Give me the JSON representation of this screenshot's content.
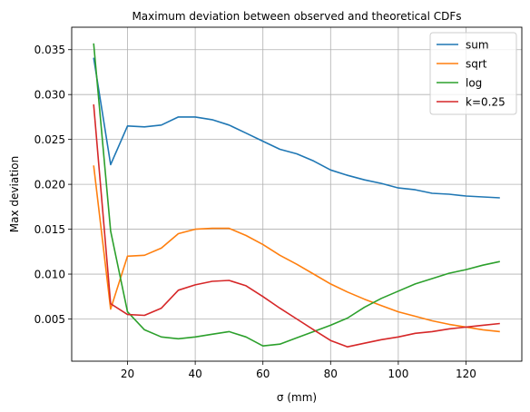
{
  "chart_data": {
    "type": "line",
    "title": "Maximum deviation between observed and theoretical CDFs",
    "xlabel": "σ (mm)",
    "ylabel": "Max deviation",
    "xlim": [
      3.5,
      136.5
    ],
    "ylim": [
      0.0003,
      0.0375
    ],
    "xticks": [
      20,
      40,
      60,
      80,
      100,
      120
    ],
    "yticks": [
      0.005,
      0.01,
      0.015,
      0.02,
      0.025,
      0.03,
      0.035
    ],
    "xtick_labels": [
      "20",
      "40",
      "60",
      "80",
      "100",
      "120"
    ],
    "ytick_labels": [
      "0.005",
      "0.010",
      "0.015",
      "0.020",
      "0.025",
      "0.030",
      "0.035"
    ],
    "grid": true,
    "legend_position": "top-right",
    "x": [
      10,
      15,
      20,
      25,
      30,
      35,
      40,
      45,
      50,
      55,
      60,
      65,
      70,
      75,
      80,
      85,
      90,
      95,
      100,
      105,
      110,
      115,
      120,
      125,
      130
    ],
    "series": [
      {
        "name": "sum",
        "color": "#1f77b4",
        "values": [
          0.0341,
          0.0222,
          0.0265,
          0.0264,
          0.0266,
          0.0275,
          0.0275,
          0.0272,
          0.0266,
          0.0257,
          0.0248,
          0.0239,
          0.0234,
          0.0226,
          0.0216,
          0.021,
          0.0205,
          0.0201,
          0.0196,
          0.0194,
          0.019,
          0.0189,
          0.0187,
          0.0186,
          0.0185
        ]
      },
      {
        "name": "sqrt",
        "color": "#ff7f0e",
        "values": [
          0.0221,
          0.0061,
          0.012,
          0.0121,
          0.0129,
          0.0145,
          0.015,
          0.0151,
          0.0151,
          0.0143,
          0.0133,
          0.0121,
          0.0111,
          0.01,
          0.0089,
          0.008,
          0.0072,
          0.0065,
          0.0058,
          0.0053,
          0.0048,
          0.0044,
          0.0041,
          0.0038,
          0.0036
        ]
      },
      {
        "name": "log",
        "color": "#2ca02c",
        "values": [
          0.0357,
          0.0148,
          0.0058,
          0.0038,
          0.003,
          0.0028,
          0.003,
          0.0033,
          0.0036,
          0.003,
          0.002,
          0.0022,
          0.0029,
          0.0036,
          0.0043,
          0.0051,
          0.0063,
          0.0073,
          0.0081,
          0.0089,
          0.0095,
          0.0101,
          0.0105,
          0.011,
          0.0114
        ]
      },
      {
        "name": "k=0.25",
        "color": "#d62728",
        "values": [
          0.0289,
          0.0067,
          0.0055,
          0.0054,
          0.0062,
          0.0082,
          0.0088,
          0.0092,
          0.0093,
          0.0087,
          0.0075,
          0.0062,
          0.005,
          0.0038,
          0.0026,
          0.0019,
          0.0023,
          0.0027,
          0.003,
          0.0034,
          0.0036,
          0.0039,
          0.0041,
          0.0043,
          0.0045
        ]
      }
    ]
  }
}
